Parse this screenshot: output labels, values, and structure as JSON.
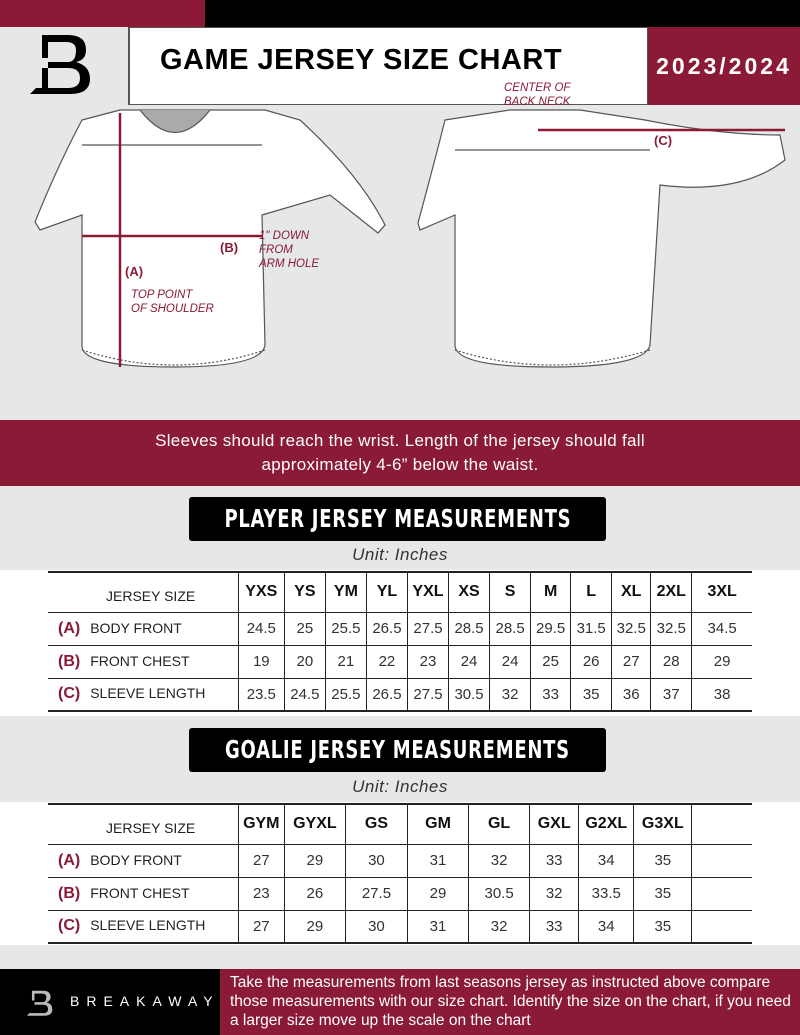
{
  "header": {
    "title": "GAME JERSEY SIZE CHART",
    "season": "2023/2024",
    "logo": "B-logo"
  },
  "diagram": {
    "front_labels": {
      "a": "(A)",
      "a_desc": "TOP POINT\nOF SHOULDER",
      "b": "(B)",
      "b_desc": "1\" DOWN\nFROM\nARM HOLE"
    },
    "back_labels": {
      "c": "(C)",
      "c_desc": "CENTER OF\nBACK NECK"
    }
  },
  "instructions": "Sleeves should reach the wrist. Length of the jersey should fall approximately 4-6” below the waist.",
  "player": {
    "title": "PLAYER JERSEY MEASUREMENTS",
    "unit": "Unit: Inches",
    "size_header": "JERSEY SIZE",
    "sizes": [
      "YXS",
      "YS",
      "YM",
      "YL",
      "YXL",
      "XS",
      "S",
      "M",
      "L",
      "XL",
      "2XL",
      "3XL"
    ],
    "rows": [
      {
        "letter": "(A)",
        "label": "BODY FRONT",
        "values": [
          "24.5",
          "25",
          "25.5",
          "26.5",
          "27.5",
          "28.5",
          "28.5",
          "29.5",
          "31.5",
          "32.5",
          "32.5",
          "34.5"
        ]
      },
      {
        "letter": "(B)",
        "label": "FRONT CHEST",
        "values": [
          "19",
          "20",
          "21",
          "22",
          "23",
          "24",
          "24",
          "25",
          "26",
          "27",
          "28",
          "29"
        ]
      },
      {
        "letter": "(C)",
        "label": "SLEEVE LENGTH",
        "values": [
          "23.5",
          "24.5",
          "25.5",
          "26.5",
          "27.5",
          "30.5",
          "32",
          "33",
          "35",
          "36",
          "37",
          "38"
        ]
      }
    ]
  },
  "goalie": {
    "title": "GOALIE JERSEY MEASUREMENTS",
    "unit": "Unit: Inches",
    "size_header": "JERSEY SIZE",
    "sizes": [
      "GYM",
      "GYXL",
      "GS",
      "GM",
      "GL",
      "GXL",
      "G2XL",
      "G3XL",
      ""
    ],
    "rows": [
      {
        "letter": "(A)",
        "label": "BODY FRONT",
        "values": [
          "27",
          "29",
          "30",
          "31",
          "32",
          "33",
          "34",
          "35",
          ""
        ]
      },
      {
        "letter": "(B)",
        "label": "FRONT CHEST",
        "values": [
          "23",
          "26",
          "27.5",
          "29",
          "30.5",
          "32",
          "33.5",
          "35",
          ""
        ]
      },
      {
        "letter": "(C)",
        "label": "SLEEVE LENGTH",
        "values": [
          "27",
          "29",
          "30",
          "31",
          "32",
          "33",
          "34",
          "35",
          ""
        ]
      }
    ]
  },
  "footer": {
    "brand": "BREAKAWAY",
    "text": "Take the measurements from last seasons jersey as instructed above compare those measurements  with our size chart. Identify the size on the chart, if you need a larger size move up the scale on the chart"
  },
  "colors": {
    "accent": "#8a1a36",
    "black": "#000000",
    "background": "#e6e7e8"
  }
}
